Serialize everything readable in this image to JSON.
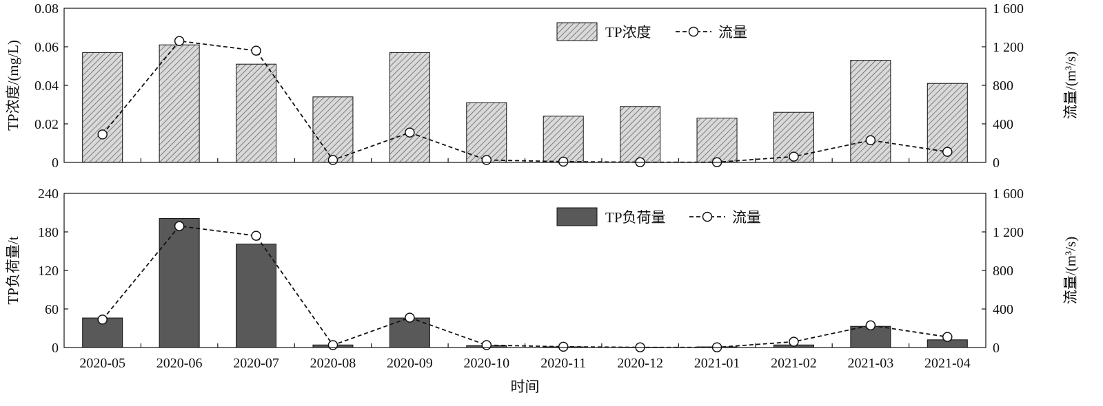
{
  "chart_data": [
    {
      "type": "bar",
      "categories": [
        "2020-05",
        "2020-06",
        "2020-07",
        "2020-08",
        "2020-09",
        "2020-10",
        "2020-11",
        "2020-12",
        "2021-01",
        "2021-02",
        "2021-03",
        "2021-04"
      ],
      "series": [
        {
          "name": "TP浓度",
          "axis": "left",
          "kind": "bar",
          "fill": "hatched",
          "values": [
            0.057,
            0.061,
            0.051,
            0.034,
            0.057,
            0.031,
            0.024,
            0.029,
            0.023,
            0.026,
            0.053,
            0.041
          ]
        },
        {
          "name": "流量",
          "axis": "right",
          "kind": "line",
          "style": "dashed-open-circle",
          "values": [
            290,
            1260,
            1160,
            25,
            310,
            25,
            8,
            2,
            2,
            60,
            230,
            110
          ]
        }
      ],
      "ylabel": "TP浓度/(mg/L)",
      "ylabel_right": "流量/(m³/s)",
      "ylim": [
        0,
        0.08
      ],
      "ylim_right": [
        0,
        1600
      ],
      "yticks": [
        "0",
        "0.02",
        "0.04",
        "0.06",
        "0.08"
      ],
      "yticks_right": [
        "0",
        "400",
        "800",
        "1 200",
        "1 600"
      ],
      "legend_position": "top-center"
    },
    {
      "type": "bar",
      "categories": [
        "2020-05",
        "2020-06",
        "2020-07",
        "2020-08",
        "2020-09",
        "2020-10",
        "2020-11",
        "2020-12",
        "2021-01",
        "2021-02",
        "2021-03",
        "2021-04"
      ],
      "series": [
        {
          "name": "TP负荷量",
          "axis": "left",
          "kind": "bar",
          "fill": "solid",
          "values": [
            46,
            201,
            161,
            4,
            46,
            3,
            1,
            0.5,
            1,
            4,
            33,
            12
          ]
        },
        {
          "name": "流量",
          "axis": "right",
          "kind": "line",
          "style": "dashed-open-circle",
          "values": [
            290,
            1260,
            1160,
            25,
            310,
            25,
            8,
            2,
            2,
            60,
            230,
            110
          ]
        }
      ],
      "ylabel": "TP负荷量/t",
      "ylabel_right": "流量/(m³/s)",
      "ylim": [
        0,
        240
      ],
      "ylim_right": [
        0,
        1600
      ],
      "yticks": [
        "0",
        "60",
        "120",
        "180",
        "240"
      ],
      "yticks_right": [
        "0",
        "400",
        "800",
        "1 200",
        "1 600"
      ],
      "xlabel": "时间",
      "legend_position": "top-center"
    }
  ],
  "colors": {
    "bar_hatched_fill": "#d9d9d9",
    "bar_solid_fill": "#595959",
    "line": "#111111",
    "marker_fill": "#ffffff"
  }
}
